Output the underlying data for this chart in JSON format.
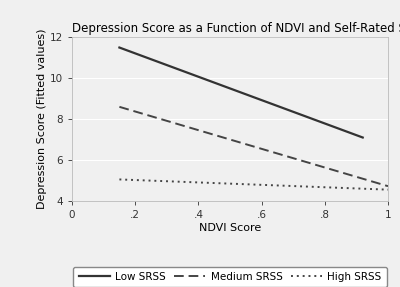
{
  "title": "Depression Score as a Function of NDVI and Self-Rated Social Standing",
  "xlabel": "NDVI Score",
  "ylabel": "Depression Score (Fitted values)",
  "xlim": [
    0,
    1
  ],
  "ylim": [
    4,
    12
  ],
  "xticks": [
    0,
    0.2,
    0.4,
    0.6,
    0.8,
    1.0
  ],
  "xticklabels": [
    "0",
    ".2",
    ".4",
    ".6",
    ".8",
    "1"
  ],
  "yticks": [
    4,
    6,
    8,
    10,
    12
  ],
  "yticklabels": [
    "4",
    "6",
    "8",
    "10",
    "12"
  ],
  "lines": [
    {
      "label": "Low SRSS",
      "x": [
        0.15,
        0.92
      ],
      "y": [
        11.5,
        7.1
      ],
      "linestyle": "solid",
      "color": "#333333",
      "linewidth": 1.6
    },
    {
      "label": "Medium SRSS",
      "x": [
        0.15,
        1.0
      ],
      "y": [
        8.6,
        4.72
      ],
      "linestyle": "dashed",
      "color": "#444444",
      "linewidth": 1.4
    },
    {
      "label": "High SRSS",
      "x": [
        0.15,
        1.0
      ],
      "y": [
        5.05,
        4.55
      ],
      "linestyle": "dotted",
      "color": "#444444",
      "linewidth": 1.4
    }
  ],
  "background_color": "#f0f0f0",
  "plot_bg_color": "#f0f0f0",
  "grid_color": "#ffffff",
  "title_fontsize": 8.5,
  "label_fontsize": 8.0,
  "tick_fontsize": 7.5,
  "legend_fontsize": 7.5
}
